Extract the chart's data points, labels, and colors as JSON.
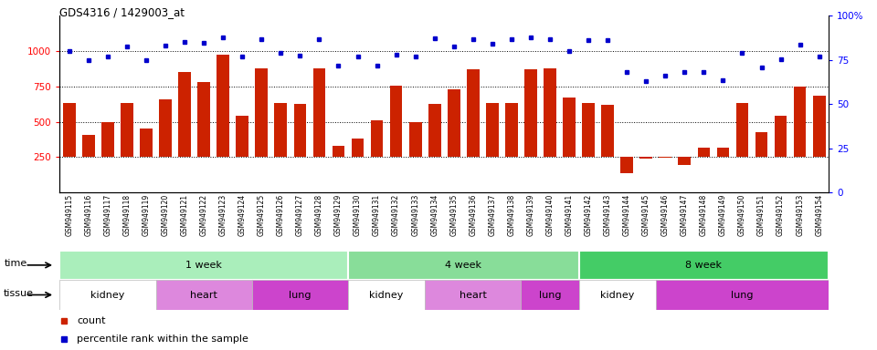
{
  "title": "GDS4316 / 1429003_at",
  "samples": [
    "GSM949115",
    "GSM949116",
    "GSM949117",
    "GSM949118",
    "GSM949119",
    "GSM949120",
    "GSM949121",
    "GSM949122",
    "GSM949123",
    "GSM949124",
    "GSM949125",
    "GSM949126",
    "GSM949127",
    "GSM949128",
    "GSM949129",
    "GSM949130",
    "GSM949131",
    "GSM949132",
    "GSM949133",
    "GSM949134",
    "GSM949135",
    "GSM949136",
    "GSM949137",
    "GSM949138",
    "GSM949139",
    "GSM949140",
    "GSM949141",
    "GSM949142",
    "GSM949143",
    "GSM949144",
    "GSM949145",
    "GSM949146",
    "GSM949147",
    "GSM949148",
    "GSM949149",
    "GSM949150",
    "GSM949151",
    "GSM949152",
    "GSM949153",
    "GSM949154"
  ],
  "bar_values": [
    630,
    410,
    500,
    630,
    450,
    660,
    855,
    780,
    975,
    545,
    875,
    635,
    625,
    875,
    330,
    380,
    510,
    755,
    500,
    625,
    730,
    870,
    635,
    635,
    870,
    880,
    670,
    630,
    620,
    135,
    240,
    245,
    195,
    315,
    320,
    635,
    425,
    545,
    750,
    685
  ],
  "dot_values": [
    1000,
    935,
    960,
    1030,
    935,
    1040,
    1065,
    1060,
    1100,
    960,
    1085,
    985,
    970,
    1085,
    895,
    960,
    895,
    975,
    960,
    1090,
    1035,
    1085,
    1055,
    1085,
    1100,
    1085,
    1000,
    1080,
    1080,
    850,
    790,
    825,
    855,
    855,
    795,
    990,
    885,
    940,
    1045,
    960
  ],
  "ylim_left": [
    0,
    1250
  ],
  "ylim_right": [
    0,
    100
  ],
  "yticks_left": [
    250,
    500,
    750,
    1000
  ],
  "yticks_right": [
    0,
    25,
    50,
    75,
    100
  ],
  "bar_color": "#cc2200",
  "dot_color": "#0000cc",
  "time_groups": [
    {
      "label": "1 week",
      "start": 0,
      "end": 15,
      "color": "#aaeebb"
    },
    {
      "label": "4 week",
      "start": 15,
      "end": 27,
      "color": "#88dd99"
    },
    {
      "label": "8 week",
      "start": 27,
      "end": 40,
      "color": "#44cc66"
    }
  ],
  "tissue_groups": [
    {
      "label": "kidney",
      "start": 0,
      "end": 5,
      "color": "#ffffff"
    },
    {
      "label": "heart",
      "start": 5,
      "end": 10,
      "color": "#dd88dd"
    },
    {
      "label": "lung",
      "start": 10,
      "end": 15,
      "color": "#cc44cc"
    },
    {
      "label": "kidney",
      "start": 15,
      "end": 19,
      "color": "#ffffff"
    },
    {
      "label": "heart",
      "start": 19,
      "end": 24,
      "color": "#dd88dd"
    },
    {
      "label": "lung",
      "start": 24,
      "end": 27,
      "color": "#cc44cc"
    },
    {
      "label": "kidney",
      "start": 27,
      "end": 31,
      "color": "#ffffff"
    },
    {
      "label": "lung",
      "start": 31,
      "end": 40,
      "color": "#cc44cc"
    }
  ]
}
